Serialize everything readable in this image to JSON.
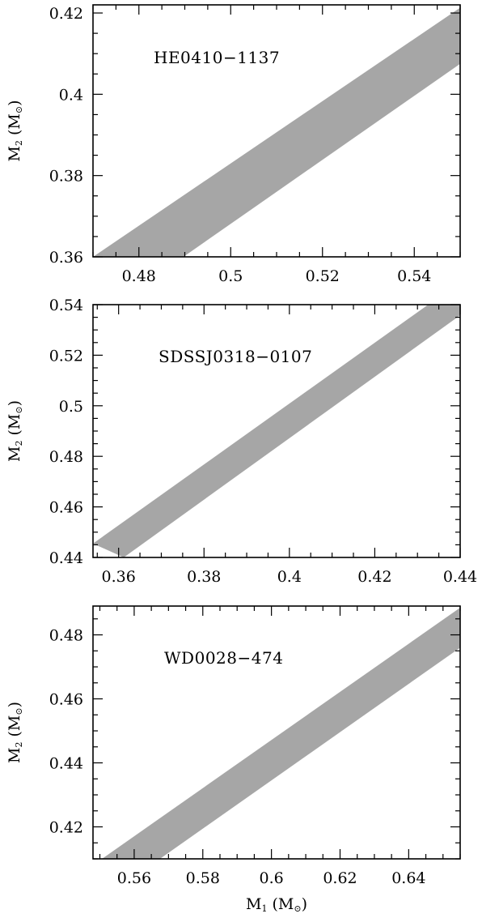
{
  "chart_data": [
    {
      "type": "area",
      "annotation": "HE0410−1137",
      "xlabel": "",
      "ylabel": "M2 (M⊙)",
      "ylabel_parts": {
        "main": "M",
        "sub": "2",
        "unit": " (M",
        "unit_sub": "⊙",
        "close": ")"
      },
      "xlim": [
        0.47,
        0.55
      ],
      "ylim": [
        0.36,
        0.422
      ],
      "x_ticks": [
        0.48,
        0.5,
        0.52,
        0.54
      ],
      "x_tick_labels": [
        "0.48",
        "0.5",
        "0.52",
        "0.54"
      ],
      "y_ticks": [
        0.36,
        0.38,
        0.4,
        0.42
      ],
      "y_tick_labels": [
        "0.36",
        "0.38",
        "0.4",
        "0.42"
      ],
      "band_color": "#a6a6a6",
      "band": {
        "upper": [
          [
            0.47,
            0.36
          ],
          [
            0.55,
            0.4213
          ]
        ],
        "lower": [
          [
            0.4897,
            0.36
          ],
          [
            0.55,
            0.4075
          ]
        ]
      }
    },
    {
      "type": "area",
      "annotation": "SDSSJ0318−0107",
      "xlabel": "",
      "ylabel": "M2 (M⊙)",
      "ylabel_parts": {
        "main": "M",
        "sub": "2",
        "unit": " (M",
        "unit_sub": "⊙",
        "close": ")"
      },
      "xlim": [
        0.354,
        0.44
      ],
      "ylim": [
        0.44,
        0.54
      ],
      "x_ticks": [
        0.36,
        0.38,
        0.4,
        0.42,
        0.44
      ],
      "x_tick_labels": [
        "0.36",
        "0.38",
        "0.4",
        "0.42",
        "0.44"
      ],
      "y_ticks": [
        0.44,
        0.46,
        0.48,
        0.5,
        0.52,
        0.54
      ],
      "y_tick_labels": [
        "0.44",
        "0.46",
        "0.48",
        "0.5",
        "0.52",
        "0.54"
      ],
      "band_color": "#a6a6a6",
      "band": {
        "upper": [
          [
            0.354,
            0.4455
          ],
          [
            0.4325,
            0.54
          ],
          [
            0.44,
            0.54
          ]
        ],
        "lower": [
          [
            0.3612,
            0.44
          ],
          [
            0.44,
            0.5358
          ]
        ]
      }
    },
    {
      "type": "area",
      "annotation": "WD0028−474",
      "xlabel": "M1 (M⊙)",
      "xlabel_parts": {
        "main": "M",
        "sub": "1",
        "unit": " (M",
        "unit_sub": "⊙",
        "close": ")"
      },
      "ylabel": "M2 (M⊙)",
      "ylabel_parts": {
        "main": "M",
        "sub": "2",
        "unit": " (M",
        "unit_sub": "⊙",
        "close": ")"
      },
      "xlim": [
        0.548,
        0.655
      ],
      "ylim": [
        0.41,
        0.489
      ],
      "x_ticks": [
        0.56,
        0.58,
        0.6,
        0.62,
        0.64
      ],
      "x_tick_labels": [
        "0.56",
        "0.58",
        "0.6",
        "0.62",
        "0.64"
      ],
      "y_ticks": [
        0.42,
        0.44,
        0.46,
        0.48
      ],
      "y_tick_labels": [
        "0.42",
        "0.44",
        "0.46",
        "0.48"
      ],
      "band_color": "#a6a6a6",
      "band": {
        "upper": [
          [
            0.5506,
            0.41
          ],
          [
            0.655,
            0.4885
          ]
        ],
        "lower": [
          [
            0.5675,
            0.41
          ],
          [
            0.655,
            0.476
          ]
        ]
      }
    }
  ]
}
